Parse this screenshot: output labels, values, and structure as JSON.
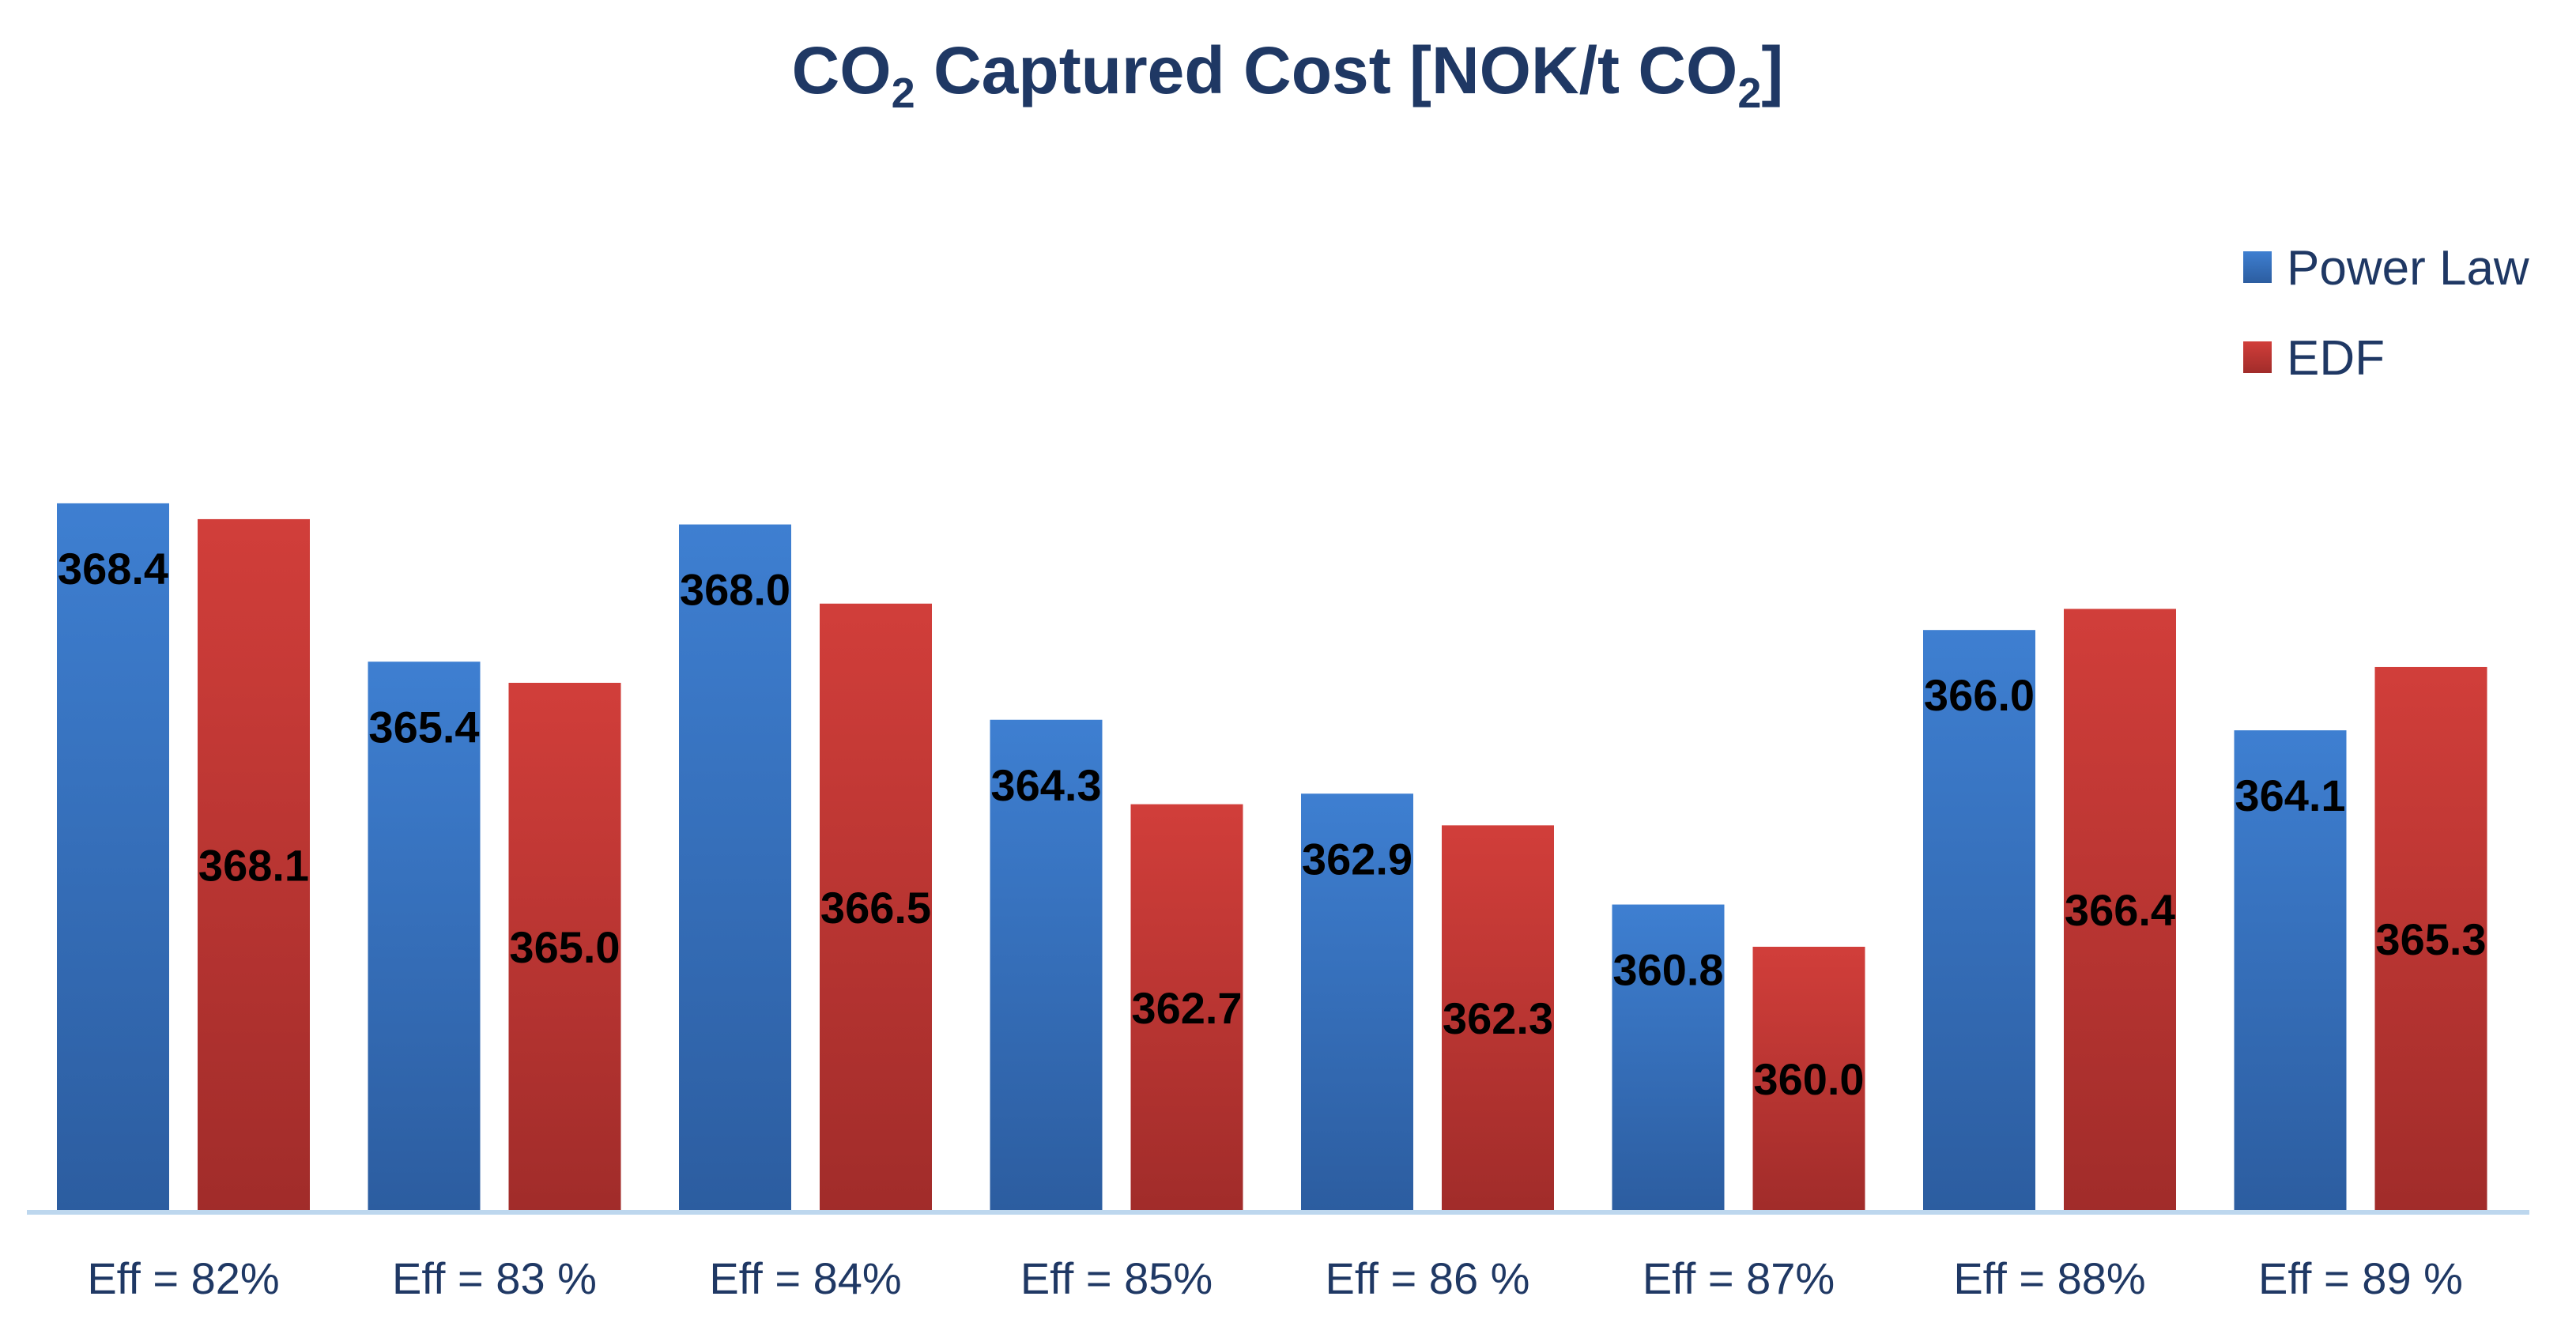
{
  "chart_data": {
    "type": "bar",
    "title": {
      "prefix": "CO",
      "sub1": "2",
      "middle": " Captured Cost [NOK/t CO",
      "sub2": "2",
      "suffix": "]"
    },
    "categories": [
      "Eff = 82%",
      "Eff = 83 %",
      "Eff = 84%",
      "Eff = 85%",
      "Eff = 86 %",
      "Eff = 87%",
      "Eff = 88%",
      "Eff = 89 %"
    ],
    "series": [
      {
        "name": "Power Law",
        "values": [
          368.4,
          365.4,
          368.0,
          364.3,
          362.9,
          360.8,
          366.0,
          364.1
        ],
        "labels": [
          "368.4",
          "365.4",
          "368.0",
          "364.3",
          "362.9",
          "360.8",
          "366.0",
          "364.1"
        ],
        "color_top": "#3E7FD1",
        "color_bottom": "#2C5DA0"
      },
      {
        "name": "EDF",
        "values": [
          368.1,
          365.0,
          366.5,
          362.7,
          362.3,
          360.0,
          366.4,
          365.3
        ],
        "labels": [
          "368.1",
          "365.0",
          "366.5",
          "362.7",
          "362.3",
          "360.0",
          "366.4",
          "365.3"
        ],
        "color_top": "#D13E3A",
        "color_bottom": "#A12C2A"
      }
    ],
    "ylim": [
      355,
      370
    ],
    "grid": false,
    "legend_position": "top-right",
    "text_color": "#1F3864",
    "axis_color": "#BDD7EE"
  }
}
